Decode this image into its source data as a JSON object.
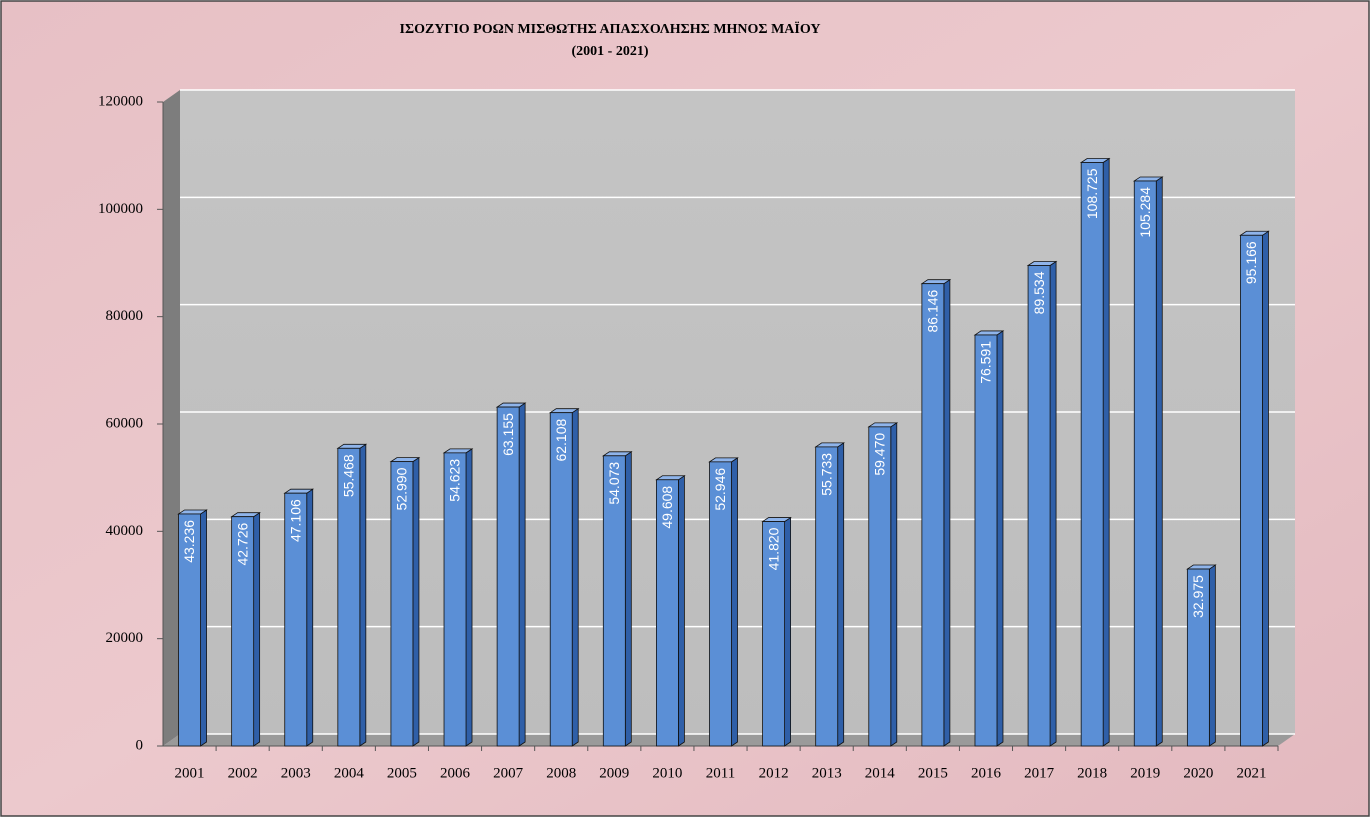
{
  "chart_data": {
    "type": "bar",
    "title": "ΙΣΟΖΥΓΙΟ ΡΟΩΝ ΜΙΣΘΩΤΗΣ ΑΠΑΣΧΟΛΗΣΗΣ ΜΗΝΟΣ  ΜΑΪΟΥ",
    "subtitle": "(2001 - 2021)",
    "categories": [
      "2001",
      "2002",
      "2003",
      "2004",
      "2005",
      "2006",
      "2007",
      "2008",
      "2009",
      "2010",
      "2011",
      "2012",
      "2013",
      "2014",
      "2015",
      "2016",
      "2017",
      "2018",
      "2019",
      "2020",
      "2021"
    ],
    "values": [
      43236,
      42726,
      47106,
      55468,
      52990,
      54623,
      63155,
      62108,
      54073,
      49608,
      52946,
      41820,
      55733,
      59470,
      86146,
      76591,
      89534,
      108725,
      105284,
      32975,
      95166
    ],
    "value_labels": [
      "43.236",
      "42.726",
      "47.106",
      "55.468",
      "52.990",
      "54.623",
      "63.155",
      "62.108",
      "54.073",
      "49.608",
      "52.946",
      "41.820",
      "55.733",
      "59.470",
      "86.146",
      "76.591",
      "89.534",
      "108.725",
      "105.284",
      "32.975",
      "95.166"
    ],
    "color": "#5b8fd6",
    "ylim": [
      0,
      120000
    ],
    "yticks": [
      0,
      20000,
      40000,
      60000,
      80000,
      100000,
      120000
    ],
    "grid": true
  }
}
